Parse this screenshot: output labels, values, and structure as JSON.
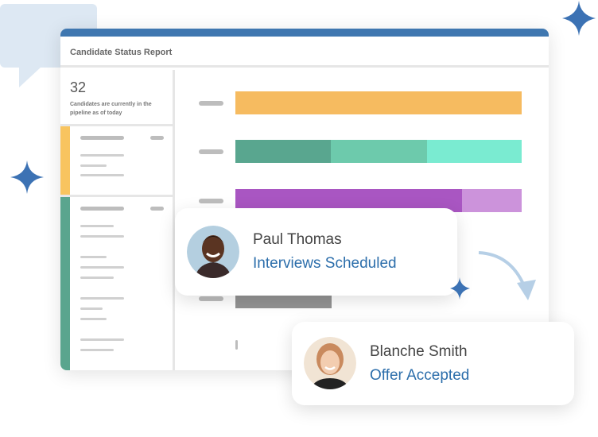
{
  "report": {
    "title": "Candidate Status Report",
    "count": "32",
    "summary": "Candidates are currently in the pipeline as of today"
  },
  "bars": [
    {
      "segments": [
        {
          "fraction": 1.0,
          "color": "#f6bb60"
        }
      ]
    },
    {
      "segments": [
        {
          "fraction": 0.333,
          "color": "#59a68f"
        },
        {
          "fraction": 0.336,
          "color": "#6dcaac"
        },
        {
          "fraction": 0.331,
          "color": "#7aebd1"
        }
      ]
    },
    {
      "segments": [
        {
          "fraction": 0.792,
          "color": "#a956c2"
        },
        {
          "fraction": 0.208,
          "color": "#cc93db"
        }
      ]
    },
    {
      "segments": [
        {
          "fraction": 0.336,
          "color": "#939393"
        }
      ]
    }
  ],
  "cards": [
    {
      "name": "Paul Thomas",
      "status": "Interviews Scheduled"
    },
    {
      "name": "Blanche Smith",
      "status": "Offer Accepted"
    }
  ],
  "colors": {
    "accent": "#3f77b0",
    "status_text": "#2c6eab",
    "sparkle": "#3c72b4"
  }
}
